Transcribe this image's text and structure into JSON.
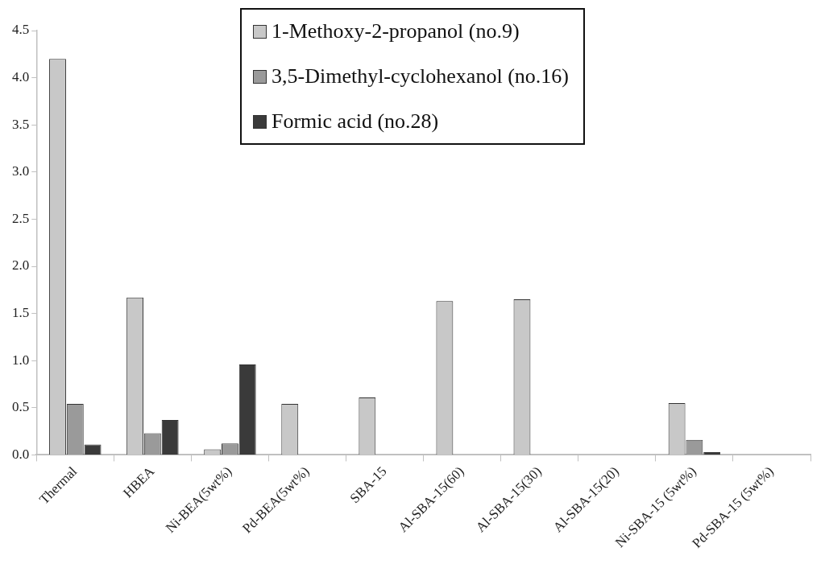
{
  "chart_data": {
    "type": "bar",
    "categories": [
      "Thermal",
      "HBEA",
      "Ni-BEA(5wt%)",
      "Pd-BEA(5wt%)",
      "SBA-15",
      "Al-SBA-15(60)",
      "Al-SBA-15(30)",
      "Al-SBA-15(20)",
      "Ni-SBA-15 (5wt%)",
      "Pd-SBA-15 (5wt%)"
    ],
    "series": [
      {
        "name": "1-Methoxy-2-propanol (no.9)",
        "color": "#c8c8c8",
        "values": [
          4.2,
          1.67,
          0.06,
          0.54,
          0.61,
          1.63,
          1.65,
          0,
          0.55,
          0
        ]
      },
      {
        "name": "3,5-Dimethyl-cyclohexanol (no.16)",
        "color": "#9a9a9a",
        "values": [
          0.54,
          0.23,
          0.12,
          0,
          0,
          0,
          0,
          0,
          0.16,
          0
        ]
      },
      {
        "name": "Formic acid (no.28)",
        "color": "#3a3a3a",
        "values": [
          0.11,
          0.37,
          0.96,
          0,
          0,
          0,
          0,
          0,
          0.03,
          0
        ]
      }
    ],
    "ylim": [
      0,
      4.5
    ],
    "yticks": [
      {
        "value": 0,
        "label": "0.0"
      },
      0.5,
      {
        "value": 1,
        "label": "1.0"
      },
      1.5,
      {
        "value": 2,
        "label": "2.0"
      },
      2.5,
      {
        "value": 3,
        "label": "3.0"
      },
      3.5,
      {
        "value": 4,
        "label": "4.0"
      },
      4.5
    ],
    "grid": false,
    "legend": "top"
  }
}
